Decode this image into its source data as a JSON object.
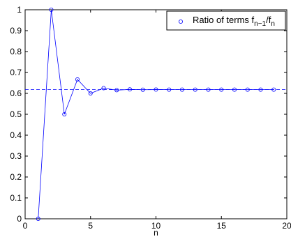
{
  "chart_data": {
    "type": "line",
    "title": "",
    "xlabel": "n",
    "ylabel": "",
    "xlim": [
      0,
      20
    ],
    "ylim": [
      0,
      1
    ],
    "xticks": [
      0,
      5,
      10,
      15,
      20
    ],
    "xtick_labels": [
      "0",
      "5",
      "10",
      "15",
      "20"
    ],
    "yticks": [
      0,
      0.1,
      0.2,
      0.3,
      0.4,
      0.5,
      0.6,
      0.7,
      0.8,
      0.9,
      1
    ],
    "ytick_labels": [
      "0",
      "0.1",
      "0.2",
      "0.3",
      "0.4",
      "0.5",
      "0.6",
      "0.7",
      "0.8",
      "0.9",
      "1"
    ],
    "grid": false,
    "legend_position": "top-right",
    "legend": {
      "prefix": "Ratio of terms f",
      "sub1": "n−1",
      "mid": "/f",
      "sub2": "n"
    },
    "reference_line": {
      "y": 0.618,
      "style": "dashed"
    },
    "series": [
      {
        "marker": "circle",
        "x": [
          1,
          2,
          3,
          4,
          5,
          6,
          7,
          8,
          9,
          10,
          11,
          12,
          13,
          14,
          15,
          16,
          17,
          18,
          19
        ],
        "y": [
          0,
          1,
          0.5,
          0.6667,
          0.6,
          0.625,
          0.6154,
          0.619,
          0.6176,
          0.6182,
          0.618,
          0.618,
          0.618,
          0.618,
          0.618,
          0.618,
          0.618,
          0.618,
          0.618
        ]
      }
    ],
    "colors": {
      "series": "#0000ff",
      "axes": "#000000"
    }
  }
}
